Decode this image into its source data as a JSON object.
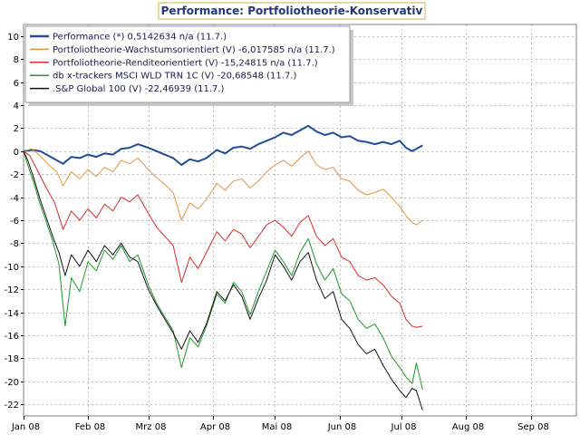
{
  "chart_data": {
    "type": "line",
    "title": "Performance: Portfoliotheorie-Konservativ",
    "xlabel": "",
    "ylabel": "",
    "ylim": [
      -23,
      11
    ],
    "xlim": [
      "2008-01-01",
      "2008-09-23"
    ],
    "yticks": [
      10,
      8,
      6,
      4,
      2,
      0,
      -2,
      -4,
      -6,
      -8,
      -10,
      -12,
      -14,
      -16,
      -18,
      -20,
      -22
    ],
    "xticks": [
      {
        "label": "Jan 08",
        "date": "2008-01-01"
      },
      {
        "label": "Feb 08",
        "date": "2008-02-01"
      },
      {
        "label": "Mrz 08",
        "date": "2008-03-01"
      },
      {
        "label": "Apr 08",
        "date": "2008-04-01"
      },
      {
        "label": "Mai 08",
        "date": "2008-05-01"
      },
      {
        "label": "Jun 08",
        "date": "2008-06-01"
      },
      {
        "label": "Jul 08",
        "date": "2008-07-01"
      },
      {
        "label": "Aug 08",
        "date": "2008-08-01"
      },
      {
        "label": "Sep 08",
        "date": "2008-09-01"
      }
    ],
    "grid": true,
    "legend_position": "top-left",
    "series": [
      {
        "name": "Performance (*) 0,5142634 n/a (11.7.)",
        "color": "#1f4e96",
        "width": 2,
        "points": [
          [
            "2008-01-01",
            0.0
          ],
          [
            "2008-01-05",
            0.1
          ],
          [
            "2008-01-09",
            0.0
          ],
          [
            "2008-01-13",
            -0.4
          ],
          [
            "2008-01-17",
            -0.8
          ],
          [
            "2008-01-20",
            -1.1
          ],
          [
            "2008-01-24",
            -0.5
          ],
          [
            "2008-01-28",
            -0.6
          ],
          [
            "2008-02-01",
            -0.3
          ],
          [
            "2008-02-05",
            -0.5
          ],
          [
            "2008-02-09",
            -0.2
          ],
          [
            "2008-02-13",
            -0.3
          ],
          [
            "2008-02-17",
            0.2
          ],
          [
            "2008-02-21",
            0.3
          ],
          [
            "2008-02-25",
            0.6
          ],
          [
            "2008-03-01",
            0.3
          ],
          [
            "2008-03-05",
            0.0
          ],
          [
            "2008-03-09",
            -0.3
          ],
          [
            "2008-03-13",
            -0.6
          ],
          [
            "2008-03-17",
            -1.2
          ],
          [
            "2008-03-21",
            -0.7
          ],
          [
            "2008-03-25",
            -0.9
          ],
          [
            "2008-03-29",
            -0.6
          ],
          [
            "2008-04-03",
            0.1
          ],
          [
            "2008-04-07",
            -0.2
          ],
          [
            "2008-04-11",
            0.3
          ],
          [
            "2008-04-15",
            0.4
          ],
          [
            "2008-04-19",
            0.2
          ],
          [
            "2008-04-23",
            0.6
          ],
          [
            "2008-04-27",
            0.9
          ],
          [
            "2008-05-01",
            1.2
          ],
          [
            "2008-05-05",
            1.6
          ],
          [
            "2008-05-09",
            1.4
          ],
          [
            "2008-05-13",
            1.8
          ],
          [
            "2008-05-17",
            2.2
          ],
          [
            "2008-05-21",
            1.7
          ],
          [
            "2008-05-25",
            1.4
          ],
          [
            "2008-05-29",
            1.6
          ],
          [
            "2008-06-02",
            1.2
          ],
          [
            "2008-06-06",
            1.3
          ],
          [
            "2008-06-10",
            0.9
          ],
          [
            "2008-06-14",
            0.8
          ],
          [
            "2008-06-18",
            0.6
          ],
          [
            "2008-06-22",
            0.8
          ],
          [
            "2008-06-26",
            0.6
          ],
          [
            "2008-06-30",
            0.9
          ],
          [
            "2008-07-03",
            0.3
          ],
          [
            "2008-07-06",
            0.0
          ],
          [
            "2008-07-08",
            0.2
          ],
          [
            "2008-07-11",
            0.5
          ]
        ]
      },
      {
        "name": "Portfoliotheorie-Wachstumsorientiert (V) -6,017585 n/a (11.7.)",
        "color": "#e3923a",
        "width": 1,
        "points": [
          [
            "2008-01-01",
            0.0
          ],
          [
            "2008-01-05",
            0.2
          ],
          [
            "2008-01-09",
            -0.4
          ],
          [
            "2008-01-13",
            -1.2
          ],
          [
            "2008-01-17",
            -1.8
          ],
          [
            "2008-01-20",
            -3.0
          ],
          [
            "2008-01-24",
            -1.8
          ],
          [
            "2008-01-28",
            -2.4
          ],
          [
            "2008-02-01",
            -1.6
          ],
          [
            "2008-02-05",
            -2.2
          ],
          [
            "2008-02-09",
            -1.4
          ],
          [
            "2008-02-13",
            -1.8
          ],
          [
            "2008-02-17",
            -0.8
          ],
          [
            "2008-02-21",
            -1.1
          ],
          [
            "2008-02-25",
            -0.6
          ],
          [
            "2008-03-01",
            -1.6
          ],
          [
            "2008-03-05",
            -2.3
          ],
          [
            "2008-03-09",
            -2.9
          ],
          [
            "2008-03-13",
            -3.6
          ],
          [
            "2008-03-17",
            -6.0
          ],
          [
            "2008-03-21",
            -4.5
          ],
          [
            "2008-03-25",
            -5.0
          ],
          [
            "2008-03-29",
            -4.2
          ],
          [
            "2008-04-03",
            -2.8
          ],
          [
            "2008-04-07",
            -3.4
          ],
          [
            "2008-04-11",
            -2.6
          ],
          [
            "2008-04-15",
            -2.4
          ],
          [
            "2008-04-19",
            -3.2
          ],
          [
            "2008-04-23",
            -2.6
          ],
          [
            "2008-04-27",
            -1.8
          ],
          [
            "2008-05-01",
            -1.2
          ],
          [
            "2008-05-05",
            -0.8
          ],
          [
            "2008-05-09",
            -1.3
          ],
          [
            "2008-05-13",
            -0.6
          ],
          [
            "2008-05-17",
            0.0
          ],
          [
            "2008-05-21",
            -1.2
          ],
          [
            "2008-05-25",
            -1.6
          ],
          [
            "2008-05-29",
            -1.4
          ],
          [
            "2008-06-02",
            -2.4
          ],
          [
            "2008-06-06",
            -2.6
          ],
          [
            "2008-06-10",
            -3.4
          ],
          [
            "2008-06-14",
            -3.8
          ],
          [
            "2008-06-18",
            -3.6
          ],
          [
            "2008-06-22",
            -3.3
          ],
          [
            "2008-06-26",
            -4.0
          ],
          [
            "2008-06-30",
            -4.8
          ],
          [
            "2008-07-03",
            -5.6
          ],
          [
            "2008-07-06",
            -6.2
          ],
          [
            "2008-07-08",
            -6.4
          ],
          [
            "2008-07-11",
            -6.0
          ]
        ]
      },
      {
        "name": "Portfoliotheorie-Renditeorientiert (V) -15,24815 n/a (11.7.)",
        "color": "#dd2a2a",
        "width": 1,
        "points": [
          [
            "2008-01-01",
            0.0
          ],
          [
            "2008-01-04",
            -0.4
          ],
          [
            "2008-01-08",
            -1.8
          ],
          [
            "2008-01-12",
            -3.2
          ],
          [
            "2008-01-16",
            -4.5
          ],
          [
            "2008-01-20",
            -6.8
          ],
          [
            "2008-01-24",
            -5.2
          ],
          [
            "2008-01-28",
            -6.0
          ],
          [
            "2008-02-01",
            -5.0
          ],
          [
            "2008-02-05",
            -5.8
          ],
          [
            "2008-02-09",
            -4.6
          ],
          [
            "2008-02-13",
            -5.2
          ],
          [
            "2008-02-17",
            -4.0
          ],
          [
            "2008-02-21",
            -4.4
          ],
          [
            "2008-02-25",
            -3.8
          ],
          [
            "2008-03-01",
            -5.4
          ],
          [
            "2008-03-05",
            -6.6
          ],
          [
            "2008-03-09",
            -7.4
          ],
          [
            "2008-03-13",
            -8.2
          ],
          [
            "2008-03-17",
            -11.4
          ],
          [
            "2008-03-21",
            -9.2
          ],
          [
            "2008-03-25",
            -10.2
          ],
          [
            "2008-03-29",
            -8.8
          ],
          [
            "2008-04-03",
            -7.0
          ],
          [
            "2008-04-07",
            -7.8
          ],
          [
            "2008-04-11",
            -6.8
          ],
          [
            "2008-04-15",
            -7.2
          ],
          [
            "2008-04-19",
            -8.4
          ],
          [
            "2008-04-23",
            -7.4
          ],
          [
            "2008-04-27",
            -6.4
          ],
          [
            "2008-05-01",
            -6.0
          ],
          [
            "2008-05-05",
            -6.6
          ],
          [
            "2008-05-09",
            -7.4
          ],
          [
            "2008-05-13",
            -6.2
          ],
          [
            "2008-05-17",
            -5.6
          ],
          [
            "2008-05-21",
            -7.4
          ],
          [
            "2008-05-25",
            -8.2
          ],
          [
            "2008-05-29",
            -7.6
          ],
          [
            "2008-06-02",
            -9.2
          ],
          [
            "2008-06-06",
            -9.6
          ],
          [
            "2008-06-10",
            -10.8
          ],
          [
            "2008-06-14",
            -11.2
          ],
          [
            "2008-06-18",
            -11.0
          ],
          [
            "2008-06-22",
            -11.6
          ],
          [
            "2008-06-26",
            -12.6
          ],
          [
            "2008-06-30",
            -13.2
          ],
          [
            "2008-07-03",
            -14.6
          ],
          [
            "2008-07-06",
            -15.2
          ],
          [
            "2008-07-08",
            -15.3
          ],
          [
            "2008-07-11",
            -15.2
          ]
        ]
      },
      {
        "name": "db x-trackers MSCI WLD TRN 1C (V) -20,68548 (11.7.)",
        "color": "#1d9a2a",
        "width": 1,
        "points": [
          [
            "2008-01-01",
            0.0
          ],
          [
            "2008-01-03",
            -1.2
          ],
          [
            "2008-01-06",
            -2.8
          ],
          [
            "2008-01-09",
            -4.6
          ],
          [
            "2008-01-12",
            -6.2
          ],
          [
            "2008-01-15",
            -7.8
          ],
          [
            "2008-01-18",
            -9.8
          ],
          [
            "2008-01-21",
            -15.2
          ],
          [
            "2008-01-24",
            -11.0
          ],
          [
            "2008-01-28",
            -12.2
          ],
          [
            "2008-02-01",
            -9.6
          ],
          [
            "2008-02-05",
            -10.4
          ],
          [
            "2008-02-09",
            -8.6
          ],
          [
            "2008-02-13",
            -9.4
          ],
          [
            "2008-02-17",
            -8.2
          ],
          [
            "2008-02-21",
            -9.6
          ],
          [
            "2008-02-25",
            -9.0
          ],
          [
            "2008-03-01",
            -11.6
          ],
          [
            "2008-03-05",
            -13.2
          ],
          [
            "2008-03-09",
            -14.4
          ],
          [
            "2008-03-13",
            -15.6
          ],
          [
            "2008-03-17",
            -18.8
          ],
          [
            "2008-03-21",
            -16.2
          ],
          [
            "2008-03-25",
            -17.0
          ],
          [
            "2008-03-29",
            -15.2
          ],
          [
            "2008-04-03",
            -12.4
          ],
          [
            "2008-04-07",
            -13.2
          ],
          [
            "2008-04-11",
            -11.4
          ],
          [
            "2008-04-15",
            -12.2
          ],
          [
            "2008-04-19",
            -14.2
          ],
          [
            "2008-04-23",
            -12.2
          ],
          [
            "2008-04-27",
            -10.4
          ],
          [
            "2008-05-01",
            -8.6
          ],
          [
            "2008-05-05",
            -9.6
          ],
          [
            "2008-05-09",
            -10.8
          ],
          [
            "2008-05-13",
            -8.8
          ],
          [
            "2008-05-17",
            -7.6
          ],
          [
            "2008-05-21",
            -9.8
          ],
          [
            "2008-05-25",
            -11.2
          ],
          [
            "2008-05-29",
            -10.2
          ],
          [
            "2008-06-02",
            -12.4
          ],
          [
            "2008-06-06",
            -13.0
          ],
          [
            "2008-06-10",
            -14.6
          ],
          [
            "2008-06-14",
            -15.4
          ],
          [
            "2008-06-18",
            -15.0
          ],
          [
            "2008-06-22",
            -16.2
          ],
          [
            "2008-06-26",
            -17.8
          ],
          [
            "2008-06-30",
            -18.8
          ],
          [
            "2008-07-03",
            -19.6
          ],
          [
            "2008-07-06",
            -20.2
          ],
          [
            "2008-07-08",
            -18.4
          ],
          [
            "2008-07-11",
            -20.7
          ]
        ]
      },
      {
        "name": ".S&P Global 100 (V) -22,46939 (11.7.)",
        "color": "#111111",
        "width": 1,
        "points": [
          [
            "2008-01-01",
            0.0
          ],
          [
            "2008-01-03",
            -0.8
          ],
          [
            "2008-01-06",
            -2.4
          ],
          [
            "2008-01-09",
            -4.2
          ],
          [
            "2008-01-12",
            -5.8
          ],
          [
            "2008-01-15",
            -7.4
          ],
          [
            "2008-01-18",
            -8.8
          ],
          [
            "2008-01-21",
            -10.8
          ],
          [
            "2008-01-24",
            -9.0
          ],
          [
            "2008-01-28",
            -10.0
          ],
          [
            "2008-02-01",
            -8.6
          ],
          [
            "2008-02-05",
            -9.6
          ],
          [
            "2008-02-09",
            -8.2
          ],
          [
            "2008-02-13",
            -9.0
          ],
          [
            "2008-02-17",
            -8.0
          ],
          [
            "2008-02-21",
            -9.2
          ],
          [
            "2008-02-25",
            -9.6
          ],
          [
            "2008-03-01",
            -12.0
          ],
          [
            "2008-03-05",
            -13.4
          ],
          [
            "2008-03-09",
            -14.6
          ],
          [
            "2008-03-13",
            -15.8
          ],
          [
            "2008-03-17",
            -17.2
          ],
          [
            "2008-03-21",
            -15.6
          ],
          [
            "2008-03-25",
            -16.6
          ],
          [
            "2008-03-29",
            -15.0
          ],
          [
            "2008-04-03",
            -12.2
          ],
          [
            "2008-04-07",
            -13.0
          ],
          [
            "2008-04-11",
            -11.6
          ],
          [
            "2008-04-15",
            -12.6
          ],
          [
            "2008-04-19",
            -14.6
          ],
          [
            "2008-04-23",
            -12.8
          ],
          [
            "2008-04-27",
            -11.2
          ],
          [
            "2008-05-01",
            -9.0
          ],
          [
            "2008-05-05",
            -10.0
          ],
          [
            "2008-05-09",
            -11.2
          ],
          [
            "2008-05-13",
            -9.6
          ],
          [
            "2008-05-17",
            -8.8
          ],
          [
            "2008-05-21",
            -11.2
          ],
          [
            "2008-05-25",
            -12.8
          ],
          [
            "2008-05-29",
            -12.2
          ],
          [
            "2008-06-02",
            -14.6
          ],
          [
            "2008-06-06",
            -15.4
          ],
          [
            "2008-06-10",
            -16.8
          ],
          [
            "2008-06-14",
            -17.6
          ],
          [
            "2008-06-18",
            -17.2
          ],
          [
            "2008-06-22",
            -18.6
          ],
          [
            "2008-06-26",
            -19.8
          ],
          [
            "2008-06-30",
            -20.8
          ],
          [
            "2008-07-03",
            -21.4
          ],
          [
            "2008-07-06",
            -20.6
          ],
          [
            "2008-07-08",
            -20.8
          ],
          [
            "2008-07-11",
            -22.5
          ]
        ]
      }
    ]
  }
}
